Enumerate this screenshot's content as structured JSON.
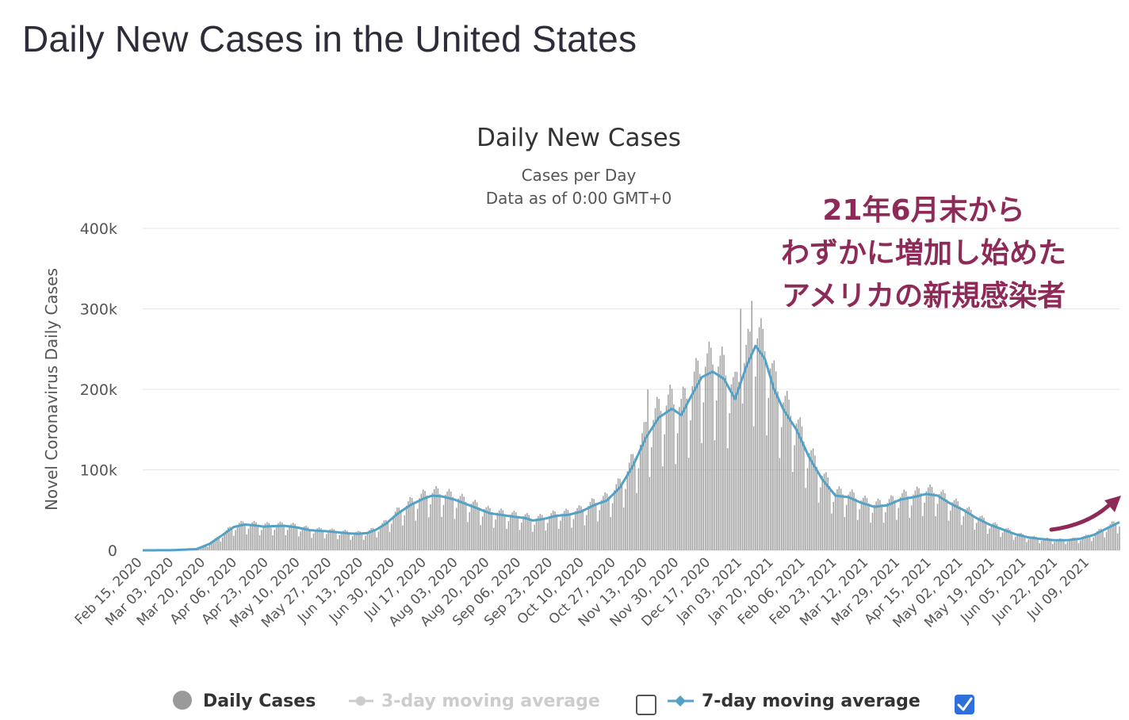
{
  "page": {
    "title": "Daily New Cases in the United States"
  },
  "chart_data": {
    "type": "bar",
    "title": "Daily New Cases",
    "subtitle_lines": [
      "Cases per Day",
      "Data as of 0:00 GMT+0"
    ],
    "xlabel": "",
    "ylabel": "Novel Coronavirus Daily Cases",
    "ylim": [
      0,
      400000
    ],
    "yticks": [
      {
        "value": 0,
        "label": "0"
      },
      {
        "value": 100000,
        "label": "100k"
      },
      {
        "value": 200000,
        "label": "200k"
      },
      {
        "value": 300000,
        "label": "300k"
      },
      {
        "value": 400000,
        "label": "400k"
      }
    ],
    "x_range": [
      "2020-02-15",
      "2021-07-25"
    ],
    "x_tick_labels": [
      "Feb 15, 2020",
      "Mar 03, 2020",
      "Mar 20, 2020",
      "Apr 06, 2020",
      "Apr 23, 2020",
      "May 10, 2020",
      "May 27, 2020",
      "Jun 13, 2020",
      "Jun 30, 2020",
      "Jul 17, 2020",
      "Aug 03, 2020",
      "Aug 20, 2020",
      "Sep 06, 2020",
      "Sep 23, 2020",
      "Oct 10, 2020",
      "Oct 27, 2020",
      "Nov 13, 2020",
      "Nov 30, 2020",
      "Dec 17, 2020",
      "Jan 03, 2021",
      "Jan 20, 2021",
      "Feb 06, 2021",
      "Feb 23, 2021",
      "Mar 12, 2021",
      "Mar 29, 2021",
      "Apr 15, 2021",
      "May 02, 2021",
      "May 19, 2021",
      "Jun 05, 2021",
      "Jun 22, 2021",
      "Jul 09, 2021"
    ],
    "grid": true,
    "series": [
      {
        "name": "Daily Cases",
        "type": "bar",
        "color": "#9a9a9a",
        "description": "one bar per day; plotted as estimated daily values derived from the 7-day moving average with weekly reporting pattern and visible spikes",
        "spikes": [
          {
            "date": "2020-11-13",
            "value": 200000
          },
          {
            "date": "2021-01-02",
            "value": 300000
          },
          {
            "date": "2021-01-08",
            "value": 310000
          }
        ]
      },
      {
        "name": "7-day moving average",
        "type": "line",
        "color": "#52a1c7",
        "points": [
          {
            "date": "2020-02-15",
            "value": 0
          },
          {
            "date": "2020-03-01",
            "value": 100
          },
          {
            "date": "2020-03-15",
            "value": 1500
          },
          {
            "date": "2020-03-22",
            "value": 8000
          },
          {
            "date": "2020-03-29",
            "value": 19000
          },
          {
            "date": "2020-04-04",
            "value": 29000
          },
          {
            "date": "2020-04-10",
            "value": 32000
          },
          {
            "date": "2020-04-15",
            "value": 31000
          },
          {
            "date": "2020-04-20",
            "value": 29500
          },
          {
            "date": "2020-04-25",
            "value": 30000
          },
          {
            "date": "2020-05-01",
            "value": 30500
          },
          {
            "date": "2020-05-08",
            "value": 28500
          },
          {
            "date": "2020-05-15",
            "value": 25000
          },
          {
            "date": "2020-05-25",
            "value": 23500
          },
          {
            "date": "2020-06-01",
            "value": 22000
          },
          {
            "date": "2020-06-05",
            "value": 21000
          },
          {
            "date": "2020-06-10",
            "value": 20500
          },
          {
            "date": "2020-06-15",
            "value": 21500
          },
          {
            "date": "2020-06-20",
            "value": 26000
          },
          {
            "date": "2020-06-25",
            "value": 33000
          },
          {
            "date": "2020-07-01",
            "value": 45000
          },
          {
            "date": "2020-07-08",
            "value": 56000
          },
          {
            "date": "2020-07-15",
            "value": 64000
          },
          {
            "date": "2020-07-20",
            "value": 68000
          },
          {
            "date": "2020-07-25",
            "value": 67000
          },
          {
            "date": "2020-08-01",
            "value": 63000
          },
          {
            "date": "2020-08-10",
            "value": 55000
          },
          {
            "date": "2020-08-20",
            "value": 46000
          },
          {
            "date": "2020-09-01",
            "value": 42000
          },
          {
            "date": "2020-09-08",
            "value": 40000
          },
          {
            "date": "2020-09-12",
            "value": 37000
          },
          {
            "date": "2020-09-18",
            "value": 39000
          },
          {
            "date": "2020-09-25",
            "value": 43000
          },
          {
            "date": "2020-10-01",
            "value": 44000
          },
          {
            "date": "2020-10-08",
            "value": 48000
          },
          {
            "date": "2020-10-15",
            "value": 56000
          },
          {
            "date": "2020-10-22",
            "value": 62000
          },
          {
            "date": "2020-10-29",
            "value": 78000
          },
          {
            "date": "2020-11-05",
            "value": 105000
          },
          {
            "date": "2020-11-12",
            "value": 140000
          },
          {
            "date": "2020-11-19",
            "value": 165000
          },
          {
            "date": "2020-11-26",
            "value": 176000
          },
          {
            "date": "2020-12-01",
            "value": 168000
          },
          {
            "date": "2020-12-06",
            "value": 190000
          },
          {
            "date": "2020-12-12",
            "value": 215000
          },
          {
            "date": "2020-12-18",
            "value": 222000
          },
          {
            "date": "2020-12-24",
            "value": 213000
          },
          {
            "date": "2020-12-30",
            "value": 188000
          },
          {
            "date": "2021-01-05",
            "value": 228000
          },
          {
            "date": "2021-01-10",
            "value": 254000
          },
          {
            "date": "2021-01-15",
            "value": 238000
          },
          {
            "date": "2021-01-20",
            "value": 200000
          },
          {
            "date": "2021-01-25",
            "value": 175000
          },
          {
            "date": "2021-02-01",
            "value": 150000
          },
          {
            "date": "2021-02-08",
            "value": 115000
          },
          {
            "date": "2021-02-15",
            "value": 88000
          },
          {
            "date": "2021-02-22",
            "value": 68000
          },
          {
            "date": "2021-03-01",
            "value": 66000
          },
          {
            "date": "2021-03-08",
            "value": 59000
          },
          {
            "date": "2021-03-15",
            "value": 54000
          },
          {
            "date": "2021-03-22",
            "value": 56000
          },
          {
            "date": "2021-03-29",
            "value": 63000
          },
          {
            "date": "2021-04-05",
            "value": 66000
          },
          {
            "date": "2021-04-12",
            "value": 70000
          },
          {
            "date": "2021-04-18",
            "value": 68000
          },
          {
            "date": "2021-04-25",
            "value": 58000
          },
          {
            "date": "2021-05-02",
            "value": 50000
          },
          {
            "date": "2021-05-09",
            "value": 40000
          },
          {
            "date": "2021-05-16",
            "value": 32000
          },
          {
            "date": "2021-05-23",
            "value": 26000
          },
          {
            "date": "2021-05-30",
            "value": 20000
          },
          {
            "date": "2021-06-06",
            "value": 16000
          },
          {
            "date": "2021-06-13",
            "value": 14000
          },
          {
            "date": "2021-06-20",
            "value": 12500
          },
          {
            "date": "2021-06-27",
            "value": 12500
          },
          {
            "date": "2021-07-04",
            "value": 14500
          },
          {
            "date": "2021-07-11",
            "value": 19000
          },
          {
            "date": "2021-07-18",
            "value": 27000
          },
          {
            "date": "2021-07-25",
            "value": 35000
          }
        ]
      }
    ],
    "legend": {
      "placement": "bottom",
      "items": [
        {
          "label": "Daily Cases",
          "symbol": "circle",
          "color": "#9a9a9a",
          "enabled": true,
          "checkbox": null
        },
        {
          "label": "3-day moving average",
          "symbol": "line-marker",
          "color": "#cccccc",
          "enabled": false,
          "checkbox": false
        },
        {
          "label": "7-day moving average",
          "symbol": "line-marker",
          "color": "#52a1c7",
          "enabled": true,
          "checkbox": true
        }
      ]
    },
    "annotation": {
      "lines": [
        "21年6月末から",
        "わずかに増加し始めた",
        "アメリカの新規感染者"
      ],
      "color": "#8e2a57"
    }
  }
}
